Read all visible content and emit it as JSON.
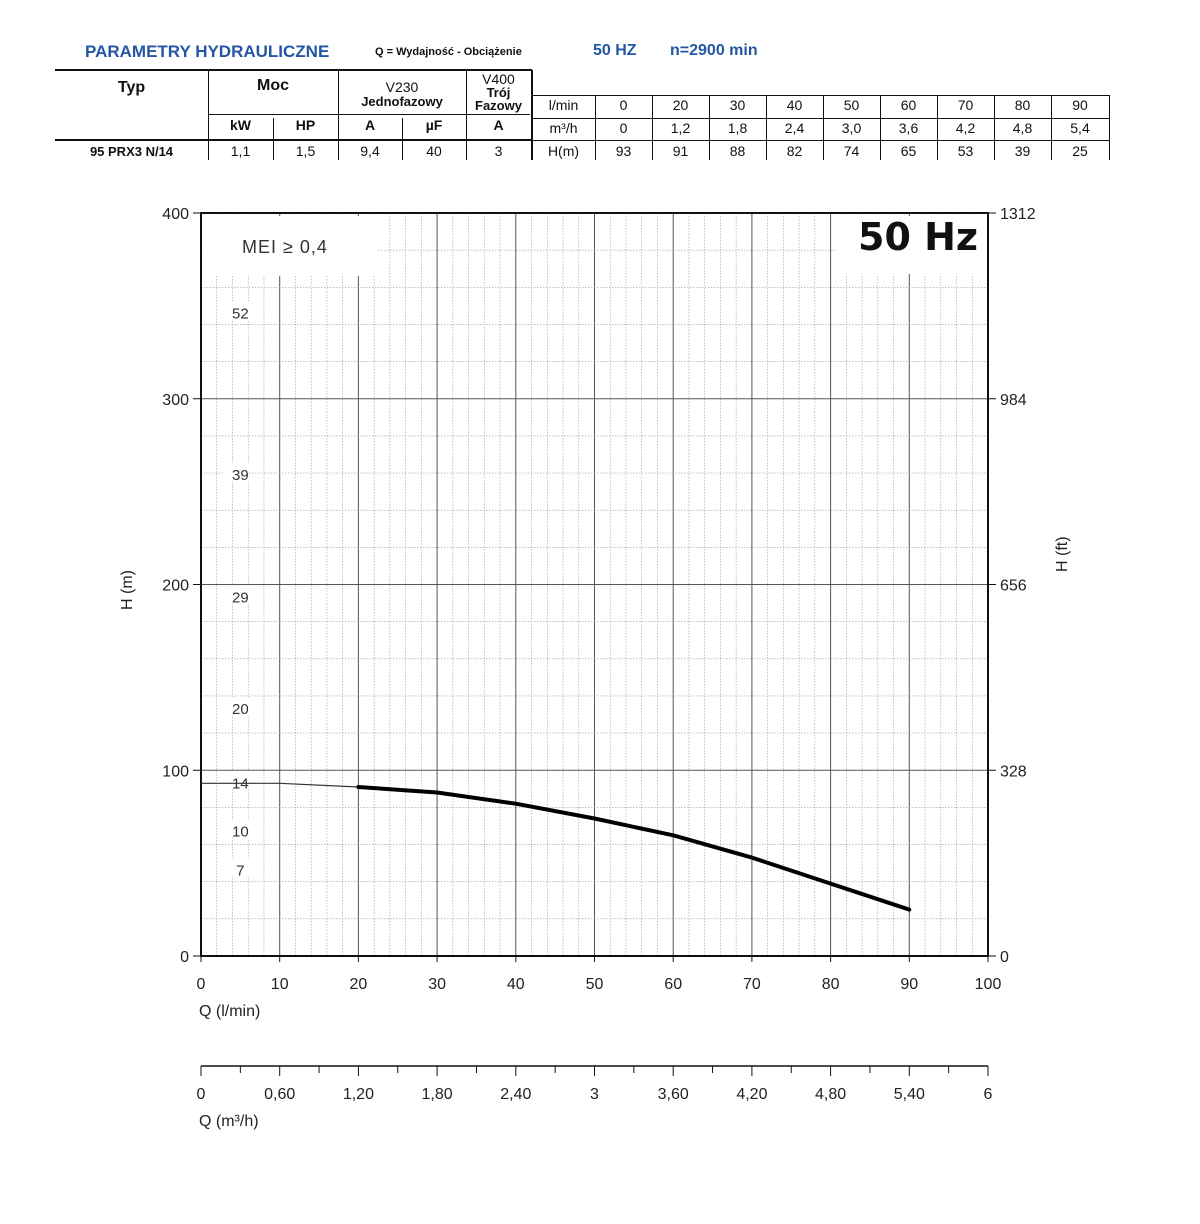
{
  "header": {
    "title": "PARAMETRY HYDRAULICZNE",
    "q_note": "Q = Wydajność - Obciążenie",
    "freq": "50 HZ",
    "speed": "n=2900 min"
  },
  "table": {
    "typ_label": "Typ",
    "moc_label": "Moc",
    "v230_label": "V230",
    "v230_sub": "Jednofazowy",
    "v400_label": "V400",
    "v400_sub1": "Trój",
    "v400_sub2": "Fazowy",
    "kw_label": "kW",
    "hp_label": "HP",
    "a_label": "A",
    "uf_label": "µF",
    "a3_label": "A",
    "row_lmin_label": "l/min",
    "row_m3h_label": "m³/h",
    "row_h_label": "H(m)",
    "lmin_values": [
      "0",
      "20",
      "30",
      "40",
      "50",
      "60",
      "70",
      "80",
      "90"
    ],
    "m3h_values": [
      "0",
      "1,2",
      "1,8",
      "2,4",
      "3,0",
      "3,6",
      "4,2",
      "4,8",
      "5,4"
    ],
    "model": {
      "name": "95 PRX3 N/14",
      "kw": "1,1",
      "hp": "1,5",
      "a230": "9,4",
      "uf": "40",
      "a400": "3",
      "h_values": [
        "93",
        "91",
        "88",
        "82",
        "74",
        "65",
        "53",
        "39",
        "25"
      ]
    }
  },
  "chart_data": {
    "type": "line",
    "badge": "50 Hz",
    "mei_label": "MEI ≥ 0,4",
    "xlabel": "Q (l/min)",
    "xlabel2": "Q (m³/h)",
    "ylabel": "H (m)",
    "ylabel2": "H (ft)",
    "xlim": [
      0,
      100
    ],
    "ylim": [
      0,
      400
    ],
    "x_ticks": [
      "0",
      "10",
      "20",
      "30",
      "40",
      "50",
      "60",
      "70",
      "80",
      "90",
      "100"
    ],
    "x2_ticks": [
      "0",
      "0,60",
      "1,20",
      "1,80",
      "2,40",
      "3",
      "3,60",
      "4,20",
      "4,80",
      "5,40",
      "6"
    ],
    "y_ticks": [
      "0",
      "100",
      "200",
      "300",
      "400"
    ],
    "y2_ticks": [
      "0",
      "328",
      "656",
      "984",
      "1312"
    ],
    "model_labels": [
      {
        "label": "52",
        "h": 346
      },
      {
        "label": "39",
        "h": 259
      },
      {
        "label": "29",
        "h": 193
      },
      {
        "label": "20",
        "h": 133
      },
      {
        "label": "14",
        "h": 93
      },
      {
        "label": "10",
        "h": 67
      },
      {
        "label": "7",
        "h": 46
      }
    ],
    "series": [
      {
        "name": "95 PRX3 N/14",
        "x": [
          0,
          10,
          20,
          30,
          40,
          50,
          60,
          70,
          80,
          90
        ],
        "y": [
          93,
          93,
          91,
          88,
          82,
          74,
          65,
          53,
          39,
          25
        ],
        "thick_from": 20
      }
    ]
  }
}
